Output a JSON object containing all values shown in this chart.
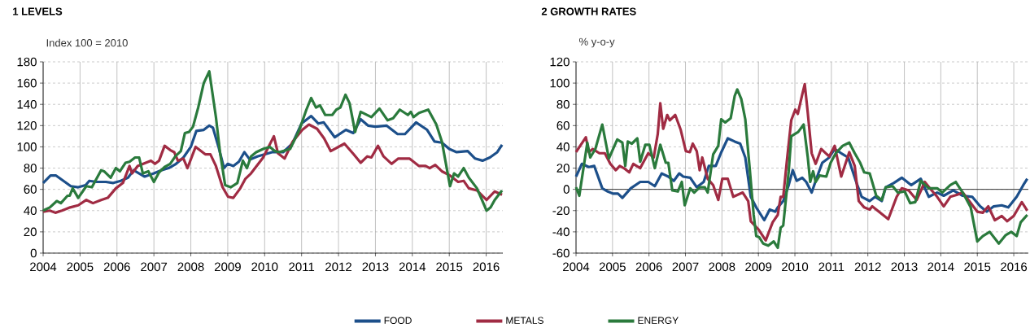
{
  "chart_data": [
    {
      "type": "line",
      "title": "1  LEVELS",
      "ylabel": "Index 100 = 2010",
      "xlim": [
        2004,
        2016.45
      ],
      "ylim": [
        0,
        180
      ],
      "xticks": [
        2004,
        2005,
        2006,
        2007,
        2008,
        2009,
        2010,
        2011,
        2012,
        2013,
        2014,
        2015,
        2016
      ],
      "yticks": [
        0,
        20,
        40,
        60,
        80,
        100,
        120,
        140,
        160,
        180
      ],
      "grid": true,
      "legend": "bottom",
      "series": [
        {
          "name": "FOOD",
          "color": "#1c4f8a",
          "x": [
            2004.0,
            2004.2,
            2004.35,
            2004.55,
            2004.75,
            2004.95,
            2005.15,
            2005.25,
            2005.45,
            2005.7,
            2005.9,
            2006.1,
            2006.3,
            2006.45,
            2006.6,
            2006.75,
            2007.0,
            2007.2,
            2007.4,
            2007.6,
            2007.8,
            2008.0,
            2008.15,
            2008.35,
            2008.5,
            2008.6,
            2008.75,
            2008.9,
            2009.0,
            2009.15,
            2009.3,
            2009.45,
            2009.6,
            2009.8,
            2010.0,
            2010.2,
            2010.5,
            2010.75,
            2011.0,
            2011.26,
            2011.45,
            2011.6,
            2011.9,
            2012.2,
            2012.4,
            2012.6,
            2012.8,
            2013.0,
            2013.3,
            2013.6,
            2013.8,
            2014.1,
            2014.4,
            2014.6,
            2014.8,
            2015.0,
            2015.2,
            2015.5,
            2015.7,
            2015.9,
            2016.1,
            2016.3,
            2016.43
          ],
          "values": [
            66,
            73,
            73,
            68,
            63,
            62,
            64,
            68,
            67,
            67,
            66,
            68,
            71,
            78,
            75,
            72,
            75,
            78,
            80,
            84,
            90,
            100,
            115,
            116,
            120,
            118,
            100,
            80,
            84,
            82,
            86,
            95,
            88,
            91,
            93,
            95,
            95,
            103,
            122,
            129,
            122,
            123,
            109,
            116,
            113,
            126,
            120,
            119,
            120,
            112,
            112,
            123,
            116,
            105,
            104,
            98,
            95,
            96,
            89,
            87,
            90,
            95,
            102
          ]
        },
        {
          "name": "METALS",
          "color": "#a02b43",
          "x": [
            2004.0,
            2004.18,
            2004.33,
            2004.51,
            2004.73,
            2004.95,
            2005.17,
            2005.35,
            2005.57,
            2005.75,
            2005.97,
            2006.16,
            2006.34,
            2006.41,
            2006.56,
            2006.78,
            2006.92,
            2007.03,
            2007.14,
            2007.29,
            2007.44,
            2007.55,
            2007.65,
            2007.8,
            2007.91,
            2008.13,
            2008.39,
            2008.53,
            2008.68,
            2008.86,
            2009.01,
            2009.15,
            2009.34,
            2009.48,
            2009.63,
            2009.96,
            2010.25,
            2010.36,
            2010.54,
            2010.76,
            2011.02,
            2011.2,
            2011.42,
            2011.61,
            2011.79,
            2012.16,
            2012.41,
            2012.6,
            2012.78,
            2012.89,
            2013.07,
            2013.22,
            2013.44,
            2013.62,
            2013.92,
            2014.18,
            2014.36,
            2014.47,
            2014.62,
            2014.8,
            2015.02,
            2015.24,
            2015.39,
            2015.53,
            2015.75,
            2016.01,
            2016.23,
            2016.43
          ],
          "values": [
            39,
            40,
            38,
            40,
            43,
            45,
            50,
            47,
            50,
            52,
            61,
            66,
            82,
            75,
            82,
            85,
            87,
            84,
            87,
            101,
            97,
            95,
            87,
            89,
            80,
            100,
            93,
            93,
            82,
            62,
            53,
            52,
            61,
            70,
            75,
            90,
            110,
            94,
            89,
            105,
            116,
            121,
            117,
            108,
            96,
            103,
            93,
            85,
            91,
            90,
            101,
            91,
            84,
            89,
            89,
            82,
            82,
            80,
            83,
            77,
            73,
            67,
            68,
            61,
            59,
            50,
            58,
            55
          ]
        },
        {
          "name": "ENERGY",
          "color": "#2a7a3c",
          "x": [
            2004.0,
            2004.18,
            2004.37,
            2004.48,
            2004.66,
            2004.72,
            2004.8,
            2004.95,
            2005.17,
            2005.32,
            2005.57,
            2005.65,
            2005.83,
            2005.97,
            2006.08,
            2006.23,
            2006.34,
            2006.49,
            2006.6,
            2006.7,
            2006.85,
            2007.0,
            2007.14,
            2007.29,
            2007.44,
            2007.58,
            2007.73,
            2007.84,
            2007.95,
            2008.06,
            2008.2,
            2008.35,
            2008.5,
            2008.68,
            2008.79,
            2008.93,
            2009.08,
            2009.26,
            2009.41,
            2009.52,
            2009.63,
            2009.77,
            2009.96,
            2010.14,
            2010.28,
            2010.39,
            2010.69,
            2010.94,
            2011.13,
            2011.26,
            2011.39,
            2011.5,
            2011.64,
            2011.83,
            2011.94,
            2012.05,
            2012.19,
            2012.3,
            2012.45,
            2012.6,
            2012.89,
            2013.11,
            2013.33,
            2013.48,
            2013.66,
            2013.88,
            2013.96,
            2014.03,
            2014.18,
            2014.43,
            2014.65,
            2014.8,
            2015.02,
            2015.13,
            2015.24,
            2015.39,
            2015.53,
            2015.75,
            2016.01,
            2016.12,
            2016.23,
            2016.43
          ],
          "values": [
            40,
            43,
            49,
            47,
            54,
            54,
            61,
            52,
            63,
            62,
            78,
            77,
            71,
            80,
            77,
            85,
            86,
            90,
            90,
            75,
            77,
            67,
            76,
            81,
            84,
            91,
            96,
            113,
            114,
            119,
            137,
            160,
            171,
            128,
            95,
            64,
            62,
            66,
            87,
            80,
            91,
            95,
            98,
            100,
            96,
            95,
            98,
            116,
            135,
            146,
            137,
            139,
            130,
            130,
            135,
            137,
            149,
            141,
            114,
            133,
            128,
            136,
            125,
            127,
            135,
            130,
            133,
            128,
            132,
            135,
            121,
            105,
            63,
            75,
            72,
            80,
            71,
            61,
            40,
            43,
            50,
            59
          ]
        }
      ]
    },
    {
      "type": "line",
      "title": "2  GROWTH RATES",
      "ylabel": "% y-o-y",
      "xlim": [
        2004,
        2016.4
      ],
      "ylim": [
        -60,
        120
      ],
      "xticks": [
        2004,
        2005,
        2006,
        2007,
        2008,
        2009,
        2010,
        2011,
        2012,
        2013,
        2014,
        2015,
        2016
      ],
      "yticks": [
        -60,
        -40,
        -20,
        0,
        20,
        40,
        60,
        80,
        100,
        120
      ],
      "grid": true,
      "ref_lines": [
        {
          "axis": "y",
          "value": 0,
          "color": "#333333"
        }
      ],
      "series": [
        {
          "color": "#1c4f8a",
          "x": [
            2004.0,
            2004.16,
            2004.35,
            2004.5,
            2004.72,
            2004.87,
            2005.01,
            2005.15,
            2005.27,
            2005.5,
            2005.76,
            2005.98,
            2006.16,
            2006.35,
            2006.53,
            2006.68,
            2006.83,
            2006.94,
            2007.13,
            2007.31,
            2007.5,
            2007.64,
            2007.83,
            2007.97,
            2008.16,
            2008.35,
            2008.5,
            2008.64,
            2008.79,
            2008.94,
            2009.16,
            2009.31,
            2009.46,
            2009.53,
            2009.68,
            2009.83,
            2009.94,
            2010.05,
            2010.2,
            2010.31,
            2010.46,
            2010.61,
            2010.75,
            2010.94,
            2011.09,
            2011.27,
            2011.46,
            2011.68,
            2011.83,
            2012.05,
            2012.2,
            2012.38,
            2012.49,
            2012.71,
            2012.93,
            2013.19,
            2013.45,
            2013.67,
            2013.9,
            2014.08,
            2014.34,
            2014.6,
            2014.86,
            2015.08,
            2015.26,
            2015.45,
            2015.67,
            2015.85,
            2016.08,
            2016.26,
            2016.37
          ],
          "values": [
            12,
            24,
            21,
            22,
            1,
            -2,
            -4,
            -4,
            -8,
            1,
            7,
            7,
            3,
            15,
            12,
            8,
            15,
            12,
            11,
            2,
            7,
            22,
            22,
            34,
            48,
            45,
            43,
            30,
            -7,
            -17,
            -29,
            -19,
            -21,
            -17,
            -11,
            4,
            18,
            8,
            11,
            7,
            -3,
            12,
            25,
            30,
            38,
            34,
            30,
            7,
            -7,
            -11,
            -7,
            -11,
            2,
            6,
            11,
            4,
            10,
            -7,
            -3,
            -6,
            -1,
            -6,
            -7,
            -16,
            -21,
            -16,
            -15,
            -17,
            -7,
            4,
            10
          ]
        },
        {
          "color": "#a02b43",
          "x": [
            2004.0,
            2004.27,
            2004.35,
            2004.46,
            2004.64,
            2004.79,
            2004.94,
            2005.09,
            2005.2,
            2005.31,
            2005.46,
            2005.57,
            2005.76,
            2005.98,
            2006.13,
            2006.24,
            2006.31,
            2006.39,
            2006.5,
            2006.57,
            2006.72,
            2006.87,
            2007.01,
            2007.12,
            2007.2,
            2007.31,
            2007.39,
            2007.46,
            2007.61,
            2007.76,
            2007.9,
            2008.01,
            2008.16,
            2008.31,
            2008.57,
            2008.72,
            2008.79,
            2009.01,
            2009.2,
            2009.39,
            2009.53,
            2009.61,
            2009.68,
            2009.79,
            2009.9,
            2010.01,
            2010.08,
            2010.2,
            2010.27,
            2010.35,
            2010.46,
            2010.57,
            2010.72,
            2010.94,
            2011.09,
            2011.27,
            2011.49,
            2011.64,
            2011.75,
            2011.9,
            2012.05,
            2012.12,
            2012.34,
            2012.56,
            2012.79,
            2012.93,
            2013.12,
            2013.34,
            2013.56,
            2013.75,
            2013.9,
            2014.08,
            2014.26,
            2014.45,
            2014.6,
            2014.78,
            2015.0,
            2015.15,
            2015.3,
            2015.48,
            2015.67,
            2015.82,
            2016.0,
            2016.22,
            2016.37
          ],
          "values": [
            35,
            49,
            35,
            38,
            34,
            34,
            24,
            18,
            22,
            20,
            16,
            24,
            20,
            34,
            30,
            52,
            81,
            57,
            70,
            65,
            70,
            56,
            36,
            35,
            43,
            36,
            18,
            30,
            10,
            4,
            -10,
            10,
            10,
            -7,
            -3,
            -11,
            -30,
            -38,
            -48,
            -31,
            -24,
            -7,
            -7,
            30,
            65,
            75,
            71,
            89,
            99,
            73,
            34,
            24,
            38,
            31,
            41,
            12,
            35,
            22,
            -11,
            -17,
            -19,
            -16,
            -22,
            -28,
            -7,
            1,
            -1,
            -10,
            7,
            -1,
            -7,
            -16,
            -7,
            -5,
            -3,
            -11,
            -21,
            -22,
            -16,
            -29,
            -25,
            -30,
            -25,
            -12,
            -20
          ]
        },
        {
          "color": "#2a7a3c",
          "x": [
            2004.0,
            2004.09,
            2004.31,
            2004.39,
            2004.53,
            2004.72,
            2004.9,
            2005.13,
            2005.27,
            2005.35,
            2005.42,
            2005.53,
            2005.68,
            2005.76,
            2005.9,
            2006.01,
            2006.16,
            2006.31,
            2006.46,
            2006.53,
            2006.64,
            2006.79,
            2006.9,
            2006.98,
            2007.13,
            2007.24,
            2007.39,
            2007.53,
            2007.61,
            2007.76,
            2007.9,
            2007.98,
            2008.09,
            2008.24,
            2008.35,
            2008.42,
            2008.53,
            2008.64,
            2008.76,
            2008.87,
            2008.94,
            2009.02,
            2009.13,
            2009.27,
            2009.42,
            2009.53,
            2009.61,
            2009.68,
            2009.83,
            2009.9,
            2010.09,
            2010.24,
            2010.35,
            2010.42,
            2010.5,
            2010.57,
            2010.68,
            2010.86,
            2010.98,
            2011.12,
            2011.31,
            2011.49,
            2011.64,
            2011.79,
            2011.9,
            2012.05,
            2012.23,
            2012.38,
            2012.49,
            2012.68,
            2012.82,
            2013.01,
            2013.16,
            2013.3,
            2013.45,
            2013.67,
            2013.9,
            2014.04,
            2014.26,
            2014.41,
            2014.6,
            2014.82,
            2015.0,
            2015.15,
            2015.34,
            2015.59,
            2015.78,
            2015.93,
            2016.08,
            2016.19,
            2016.37
          ],
          "values": [
            2,
            -6,
            44,
            30,
            38,
            61,
            29,
            47,
            44,
            22,
            45,
            43,
            48,
            26,
            42,
            42,
            20,
            42,
            25,
            25,
            -1,
            -2,
            7,
            -15,
            1,
            -3,
            2,
            2,
            -3,
            33,
            41,
            66,
            63,
            67,
            88,
            94,
            85,
            66,
            20,
            -24,
            -44,
            -45,
            -51,
            -53,
            -49,
            -55,
            -36,
            -34,
            17,
            50,
            54,
            61,
            31,
            7,
            17,
            7,
            13,
            12,
            25,
            34,
            41,
            44,
            34,
            25,
            16,
            15,
            -6,
            -10,
            2,
            3,
            -3,
            -2,
            -13,
            -12,
            8,
            1,
            1,
            -3,
            4,
            7,
            -3,
            -17,
            -49,
            -44,
            -40,
            -51,
            -43,
            -40,
            -44,
            -31,
            -24
          ]
        }
      ]
    }
  ]
}
